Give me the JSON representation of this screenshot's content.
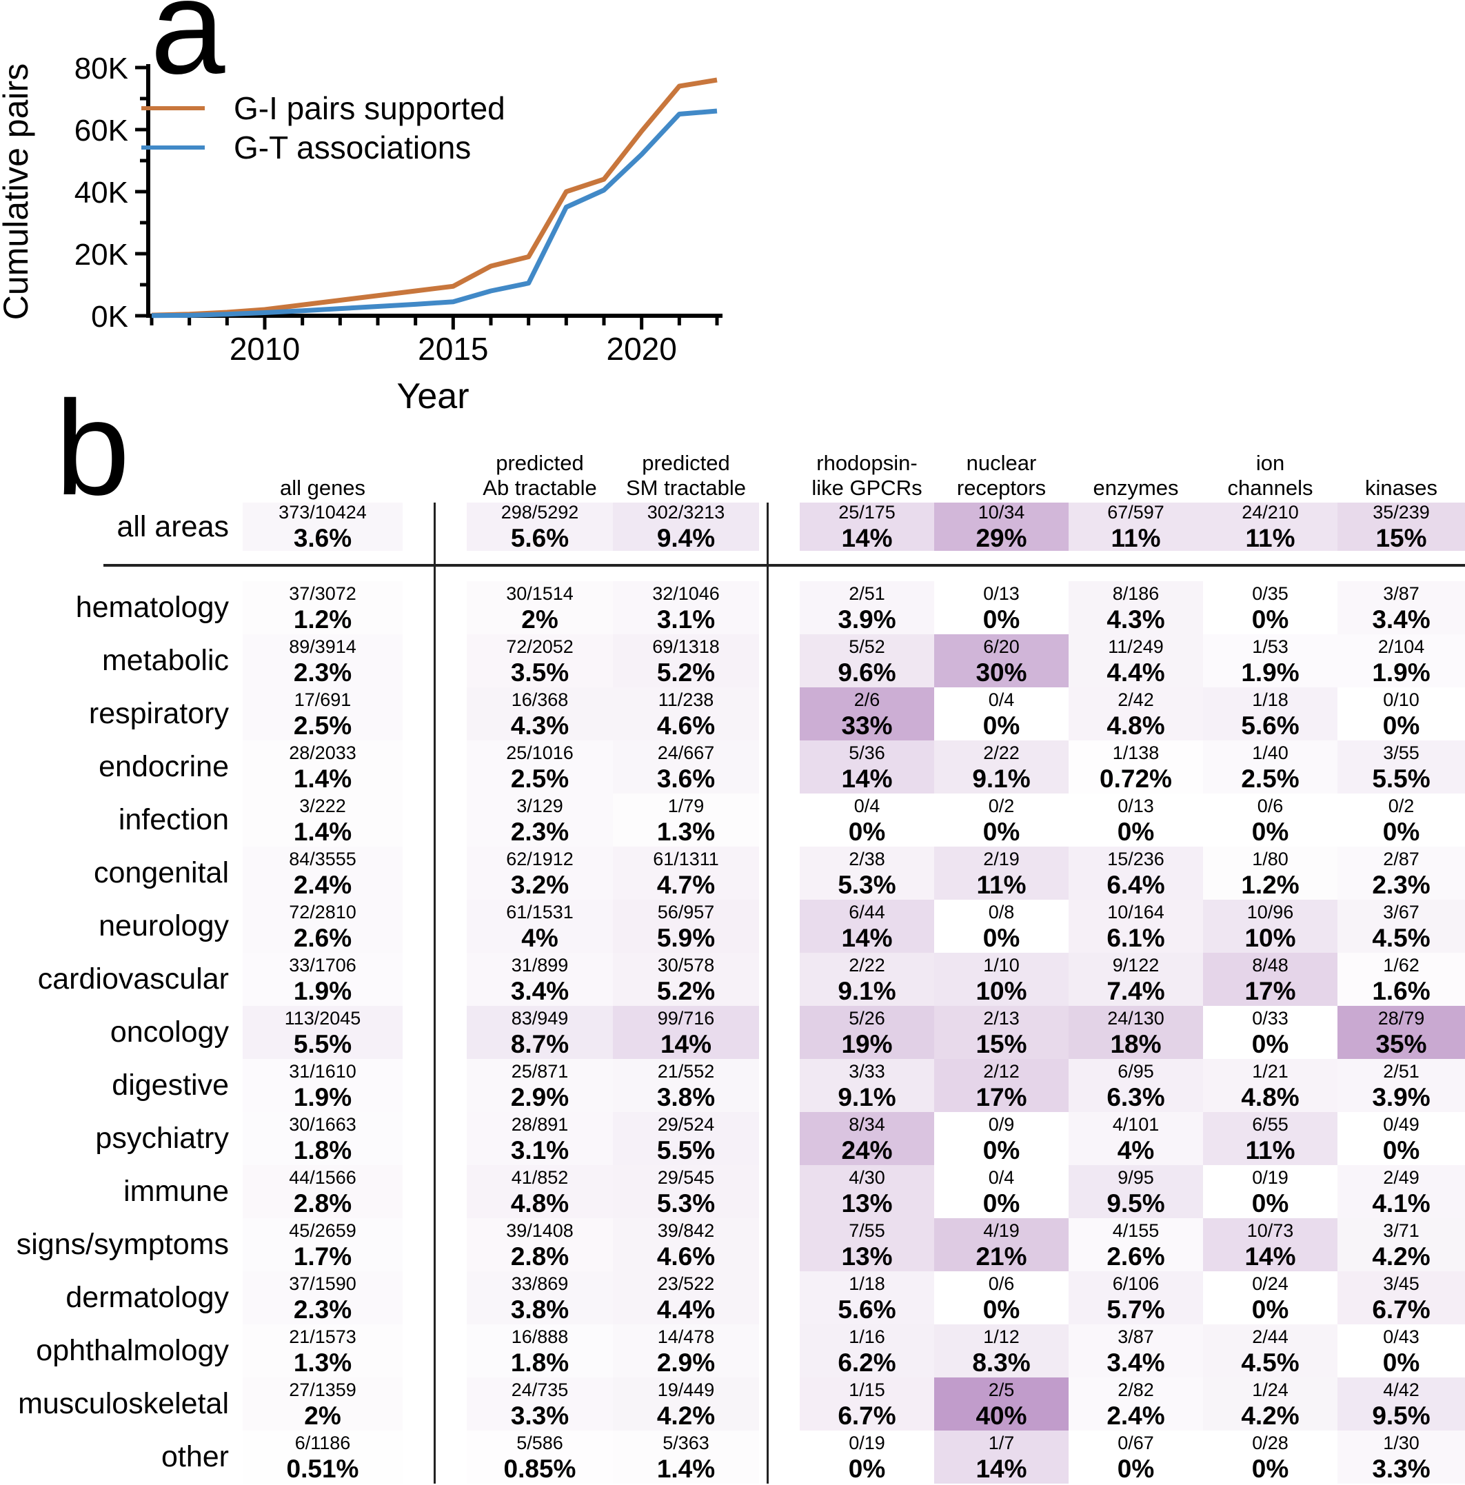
{
  "panel_a": {
    "label": "a",
    "ylabel": "Cumulative pairs",
    "xlabel": "Year"
  },
  "chart_data": {
    "type": "line",
    "title": "",
    "xlabel": "Year",
    "ylabel": "Cumulative pairs",
    "x": [
      2007,
      2008,
      2009,
      2010,
      2011,
      2012,
      2013,
      2014,
      2015,
      2016,
      2017,
      2018,
      2019,
      2020,
      2021,
      2022
    ],
    "series": [
      {
        "name": "G-I pairs supported",
        "color": "#c8763c",
        "values": [
          200,
          500,
          1100,
          2000,
          3500,
          5000,
          6500,
          8000,
          9500,
          16000,
          19000,
          40000,
          44000,
          59500,
          74000,
          76000
        ]
      },
      {
        "name": "G-T associations",
        "color": "#4189c7",
        "values": [
          50,
          150,
          500,
          1000,
          1600,
          2300,
          3000,
          3700,
          4500,
          8000,
          10500,
          35000,
          40500,
          52000,
          65000,
          66000
        ]
      }
    ],
    "ylim": [
      0,
      80000
    ],
    "ytick_values": [
      0,
      20000,
      40000,
      60000,
      80000
    ],
    "ytick_labels": [
      "0K",
      "20K",
      "40K",
      "60K",
      "80K"
    ],
    "ytick_minor": [
      10000,
      30000,
      50000,
      70000
    ],
    "xticks_major": [
      2010,
      2015,
      2020
    ],
    "grid": false,
    "legend_position": "upper left"
  },
  "panel_b": {
    "label": "b",
    "columns": [
      {
        "lines": [
          "",
          "all genes"
        ]
      },
      {
        "lines": [
          "predicted",
          "Ab tractable"
        ]
      },
      {
        "lines": [
          "predicted",
          "SM tractable"
        ]
      },
      {
        "lines": [
          "rhodopsin-",
          "like GPCRs"
        ]
      },
      {
        "lines": [
          "nuclear",
          "receptors"
        ]
      },
      {
        "lines": [
          "",
          "enzymes"
        ]
      },
      {
        "lines": [
          "ion",
          "channels"
        ]
      },
      {
        "lines": [
          "",
          "kinases"
        ]
      }
    ],
    "heatmap_color_max": "#b990c4",
    "heatmap_color_min": "#ffffff",
    "heatmap_pct_cap": 45,
    "rows": [
      {
        "label": "all areas",
        "cells": [
          [
            "373/10424",
            "3.6%"
          ],
          [
            "298/5292",
            "5.6%"
          ],
          [
            "302/3213",
            "9.4%"
          ],
          [
            "25/175",
            "14%"
          ],
          [
            "10/34",
            "29%"
          ],
          [
            "67/597",
            "11%"
          ],
          [
            "24/210",
            "11%"
          ],
          [
            "35/239",
            "15%"
          ]
        ]
      },
      {
        "label": "hematology",
        "cells": [
          [
            "37/3072",
            "1.2%"
          ],
          [
            "30/1514",
            "2%"
          ],
          [
            "32/1046",
            "3.1%"
          ],
          [
            "2/51",
            "3.9%"
          ],
          [
            "0/13",
            "0%"
          ],
          [
            "8/186",
            "4.3%"
          ],
          [
            "0/35",
            "0%"
          ],
          [
            "3/87",
            "3.4%"
          ]
        ]
      },
      {
        "label": "metabolic",
        "cells": [
          [
            "89/3914",
            "2.3%"
          ],
          [
            "72/2052",
            "3.5%"
          ],
          [
            "69/1318",
            "5.2%"
          ],
          [
            "5/52",
            "9.6%"
          ],
          [
            "6/20",
            "30%"
          ],
          [
            "11/249",
            "4.4%"
          ],
          [
            "1/53",
            "1.9%"
          ],
          [
            "2/104",
            "1.9%"
          ]
        ]
      },
      {
        "label": "respiratory",
        "cells": [
          [
            "17/691",
            "2.5%"
          ],
          [
            "16/368",
            "4.3%"
          ],
          [
            "11/238",
            "4.6%"
          ],
          [
            "2/6",
            "33%"
          ],
          [
            "0/4",
            "0%"
          ],
          [
            "2/42",
            "4.8%"
          ],
          [
            "1/18",
            "5.6%"
          ],
          [
            "0/10",
            "0%"
          ]
        ]
      },
      {
        "label": "endocrine",
        "cells": [
          [
            "28/2033",
            "1.4%"
          ],
          [
            "25/1016",
            "2.5%"
          ],
          [
            "24/667",
            "3.6%"
          ],
          [
            "5/36",
            "14%"
          ],
          [
            "2/22",
            "9.1%"
          ],
          [
            "1/138",
            "0.72%"
          ],
          [
            "1/40",
            "2.5%"
          ],
          [
            "3/55",
            "5.5%"
          ]
        ]
      },
      {
        "label": "infection",
        "cells": [
          [
            "3/222",
            "1.4%"
          ],
          [
            "3/129",
            "2.3%"
          ],
          [
            "1/79",
            "1.3%"
          ],
          [
            "0/4",
            "0%"
          ],
          [
            "0/2",
            "0%"
          ],
          [
            "0/13",
            "0%"
          ],
          [
            "0/6",
            "0%"
          ],
          [
            "0/2",
            "0%"
          ]
        ]
      },
      {
        "label": "congenital",
        "cells": [
          [
            "84/3555",
            "2.4%"
          ],
          [
            "62/1912",
            "3.2%"
          ],
          [
            "61/1311",
            "4.7%"
          ],
          [
            "2/38",
            "5.3%"
          ],
          [
            "2/19",
            "11%"
          ],
          [
            "15/236",
            "6.4%"
          ],
          [
            "1/80",
            "1.2%"
          ],
          [
            "2/87",
            "2.3%"
          ]
        ]
      },
      {
        "label": "neurology",
        "cells": [
          [
            "72/2810",
            "2.6%"
          ],
          [
            "61/1531",
            "4%"
          ],
          [
            "56/957",
            "5.9%"
          ],
          [
            "6/44",
            "14%"
          ],
          [
            "0/8",
            "0%"
          ],
          [
            "10/164",
            "6.1%"
          ],
          [
            "10/96",
            "10%"
          ],
          [
            "3/67",
            "4.5%"
          ]
        ]
      },
      {
        "label": "cardiovascular",
        "cells": [
          [
            "33/1706",
            "1.9%"
          ],
          [
            "31/899",
            "3.4%"
          ],
          [
            "30/578",
            "5.2%"
          ],
          [
            "2/22",
            "9.1%"
          ],
          [
            "1/10",
            "10%"
          ],
          [
            "9/122",
            "7.4%"
          ],
          [
            "8/48",
            "17%"
          ],
          [
            "1/62",
            "1.6%"
          ]
        ]
      },
      {
        "label": "oncology",
        "cells": [
          [
            "113/2045",
            "5.5%"
          ],
          [
            "83/949",
            "8.7%"
          ],
          [
            "99/716",
            "14%"
          ],
          [
            "5/26",
            "19%"
          ],
          [
            "2/13",
            "15%"
          ],
          [
            "24/130",
            "18%"
          ],
          [
            "0/33",
            "0%"
          ],
          [
            "28/79",
            "35%"
          ]
        ]
      },
      {
        "label": "digestive",
        "cells": [
          [
            "31/1610",
            "1.9%"
          ],
          [
            "25/871",
            "2.9%"
          ],
          [
            "21/552",
            "3.8%"
          ],
          [
            "3/33",
            "9.1%"
          ],
          [
            "2/12",
            "17%"
          ],
          [
            "6/95",
            "6.3%"
          ],
          [
            "1/21",
            "4.8%"
          ],
          [
            "2/51",
            "3.9%"
          ]
        ]
      },
      {
        "label": "psychiatry",
        "cells": [
          [
            "30/1663",
            "1.8%"
          ],
          [
            "28/891",
            "3.1%"
          ],
          [
            "29/524",
            "5.5%"
          ],
          [
            "8/34",
            "24%"
          ],
          [
            "0/9",
            "0%"
          ],
          [
            "4/101",
            "4%"
          ],
          [
            "6/55",
            "11%"
          ],
          [
            "0/49",
            "0%"
          ]
        ]
      },
      {
        "label": "immune",
        "cells": [
          [
            "44/1566",
            "2.8%"
          ],
          [
            "41/852",
            "4.8%"
          ],
          [
            "29/545",
            "5.3%"
          ],
          [
            "4/30",
            "13%"
          ],
          [
            "0/4",
            "0%"
          ],
          [
            "9/95",
            "9.5%"
          ],
          [
            "0/19",
            "0%"
          ],
          [
            "2/49",
            "4.1%"
          ]
        ]
      },
      {
        "label": "signs/symptoms",
        "cells": [
          [
            "45/2659",
            "1.7%"
          ],
          [
            "39/1408",
            "2.8%"
          ],
          [
            "39/842",
            "4.6%"
          ],
          [
            "7/55",
            "13%"
          ],
          [
            "4/19",
            "21%"
          ],
          [
            "4/155",
            "2.6%"
          ],
          [
            "10/73",
            "14%"
          ],
          [
            "3/71",
            "4.2%"
          ]
        ]
      },
      {
        "label": "dermatology",
        "cells": [
          [
            "37/1590",
            "2.3%"
          ],
          [
            "33/869",
            "3.8%"
          ],
          [
            "23/522",
            "4.4%"
          ],
          [
            "1/18",
            "5.6%"
          ],
          [
            "0/6",
            "0%"
          ],
          [
            "6/106",
            "5.7%"
          ],
          [
            "0/24",
            "0%"
          ],
          [
            "3/45",
            "6.7%"
          ]
        ]
      },
      {
        "label": "ophthalmology",
        "cells": [
          [
            "21/1573",
            "1.3%"
          ],
          [
            "16/888",
            "1.8%"
          ],
          [
            "14/478",
            "2.9%"
          ],
          [
            "1/16",
            "6.2%"
          ],
          [
            "1/12",
            "8.3%"
          ],
          [
            "3/87",
            "3.4%"
          ],
          [
            "2/44",
            "4.5%"
          ],
          [
            "0/43",
            "0%"
          ]
        ]
      },
      {
        "label": "musculoskeletal",
        "cells": [
          [
            "27/1359",
            "2%"
          ],
          [
            "24/735",
            "3.3%"
          ],
          [
            "19/449",
            "4.2%"
          ],
          [
            "1/15",
            "6.7%"
          ],
          [
            "2/5",
            "40%"
          ],
          [
            "2/82",
            "2.4%"
          ],
          [
            "1/24",
            "4.2%"
          ],
          [
            "4/42",
            "9.5%"
          ]
        ]
      },
      {
        "label": "other",
        "cells": [
          [
            "6/1186",
            "0.51%"
          ],
          [
            "5/586",
            "0.85%"
          ],
          [
            "5/363",
            "1.4%"
          ],
          [
            "0/19",
            "0%"
          ],
          [
            "1/7",
            "14%"
          ],
          [
            "0/67",
            "0%"
          ],
          [
            "0/28",
            "0%"
          ],
          [
            "1/30",
            "3.3%"
          ]
        ]
      }
    ]
  }
}
